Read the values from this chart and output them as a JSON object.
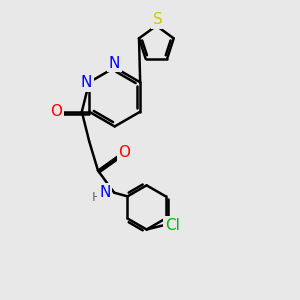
{
  "bg_color": "#e8e8e8",
  "bond_color": "#000000",
  "bond_width": 1.8,
  "atom_colors": {
    "N": "#0000ff",
    "O": "#ff0000",
    "S": "#cccc00",
    "Cl": "#00bb00",
    "C": "#000000",
    "H": "#666666"
  },
  "font_size": 10,
  "fig_size": [
    3.0,
    3.0
  ],
  "dpi": 100
}
